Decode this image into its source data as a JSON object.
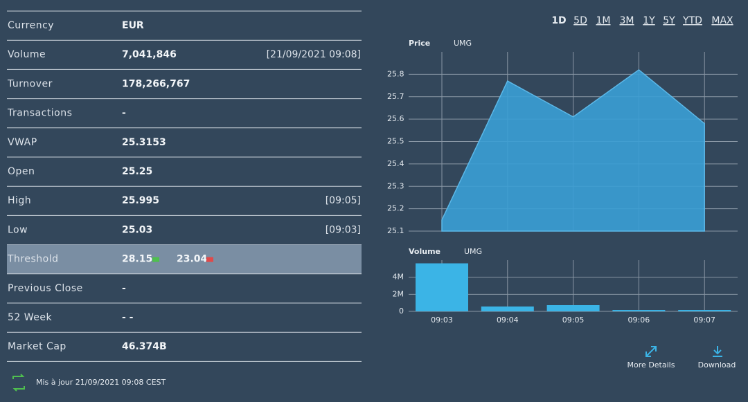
{
  "table": {
    "rows": [
      {
        "label": "Currency",
        "value": "EUR"
      },
      {
        "label": "Volume",
        "value": "7,041,846",
        "note": "[21/09/2021 09:08]"
      },
      {
        "label": "Turnover",
        "value": "178,266,767"
      },
      {
        "label": "Transactions",
        "value": "-"
      },
      {
        "label": "VWAP",
        "value": "25.3153"
      },
      {
        "label": "Open",
        "value": "25.25"
      },
      {
        "label": "High",
        "value": "25.995",
        "note": "[09:05]"
      },
      {
        "label": "Low",
        "value": "25.03",
        "note": "[09:03]"
      },
      {
        "label": "Threshold",
        "value": "28.15",
        "value2": "23.04"
      },
      {
        "label": "Previous Close",
        "value": "-"
      },
      {
        "label": "52 Week",
        "value": "-  -"
      },
      {
        "label": "Market Cap",
        "value": "46.374B"
      }
    ]
  },
  "footer": {
    "updated": "Mis à jour 21/09/2021 09:08 CEST"
  },
  "periods": [
    "1D",
    "5D",
    "1M",
    "3M",
    "1Y",
    "5Y",
    "YTD",
    "MAX"
  ],
  "price_chart": {
    "type": "area",
    "title": "Price",
    "subtitle": "UMG",
    "values": [
      25.15,
      25.77,
      25.61,
      25.82,
      25.58
    ],
    "ylim": [
      25.1,
      25.9
    ],
    "yticks": [
      25.1,
      25.2,
      25.3,
      25.4,
      25.5,
      25.6,
      25.7,
      25.8
    ],
    "color": "#3a9fd5"
  },
  "volume_chart": {
    "type": "bar",
    "title": "Volume",
    "subtitle": "UMG",
    "categories": [
      "09:03",
      "09:04",
      "09:05",
      "09:06",
      "09:07"
    ],
    "values": [
      5630000,
      570000,
      730000,
      160000,
      160000
    ],
    "ylim": [
      0,
      6000000
    ],
    "yticks": [
      0,
      {
        "value": 2000000,
        "label": "2M"
      },
      {
        "value": 4000000,
        "label": "4M"
      }
    ],
    "color": "#3bb4e6"
  },
  "actions": [
    "More Details",
    "Download"
  ]
}
